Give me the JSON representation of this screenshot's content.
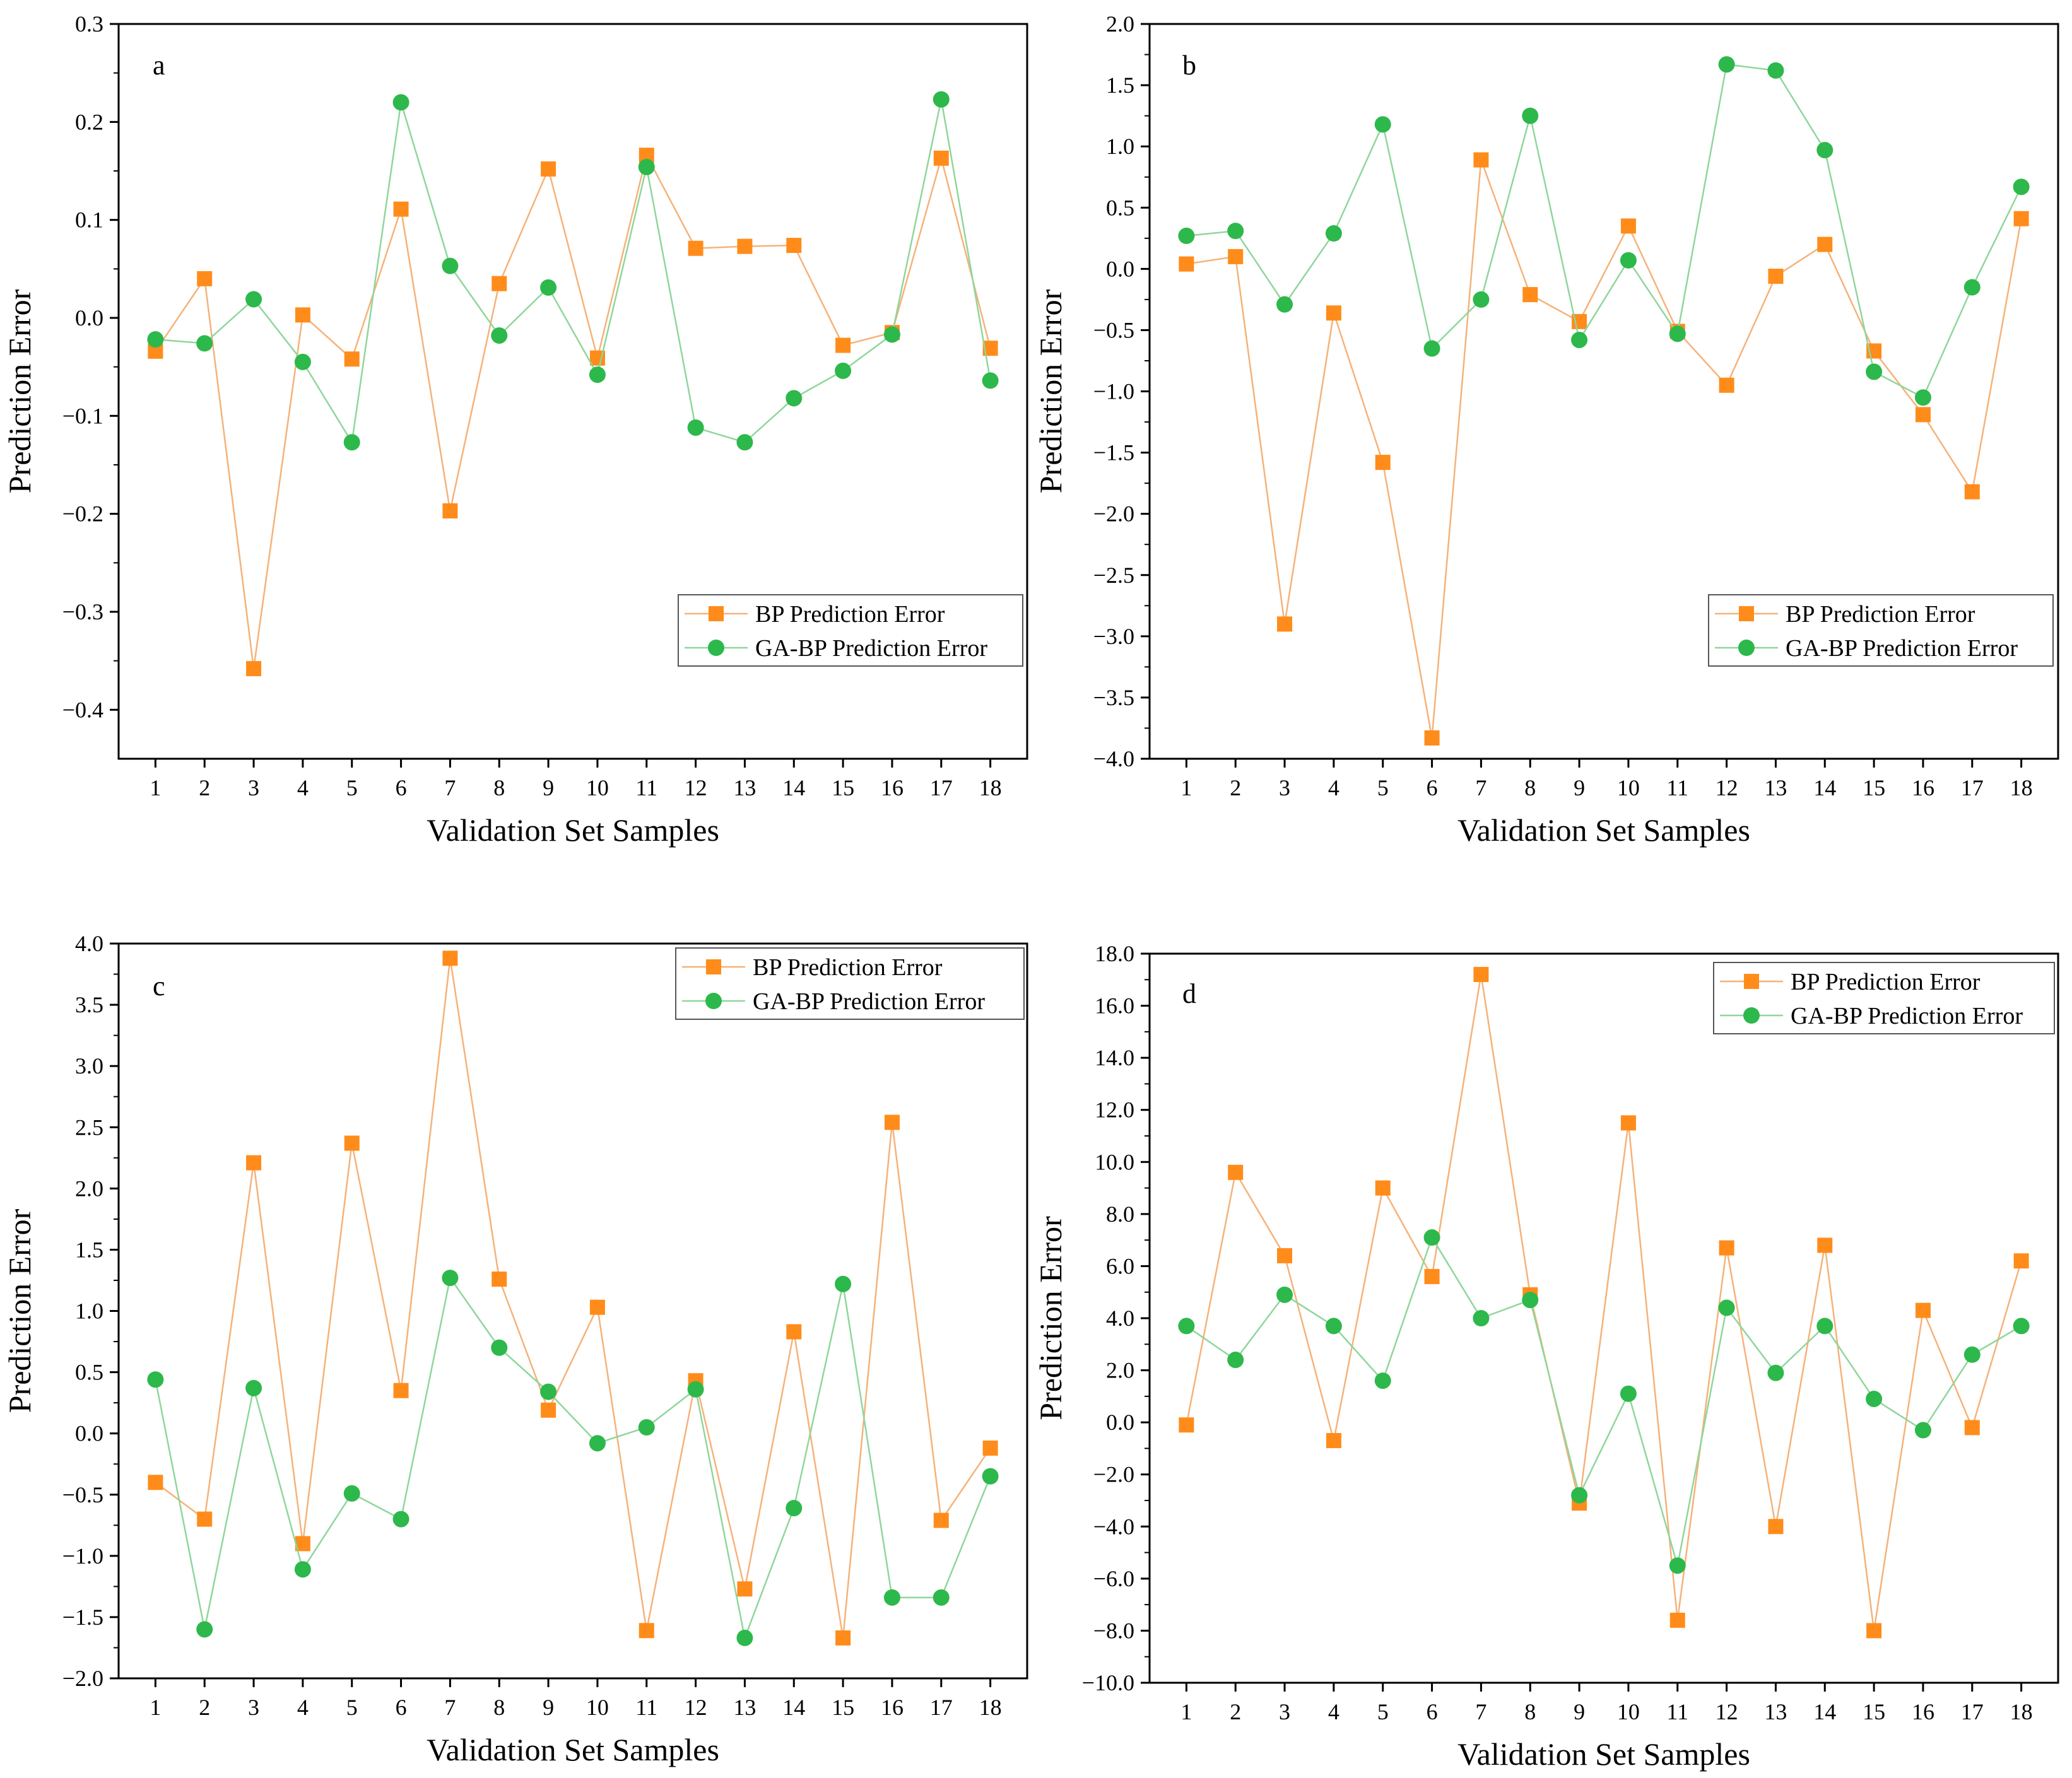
{
  "colors": {
    "bp": "#FF8C1A",
    "bp_line": "#F5B27A",
    "ga": "#2DB84B",
    "ga_line": "#8FD69B",
    "axis": "#000000",
    "background": "#ffffff"
  },
  "legend": {
    "bp_label": "BP Prediction Error",
    "ga_label": "GA-BP Prediction Error"
  },
  "chart_data": [
    {
      "type": "line",
      "panel": "a",
      "xlabel": "Validation Set Samples",
      "ylabel": "Prediction Error",
      "x": [
        1,
        2,
        3,
        4,
        5,
        6,
        7,
        8,
        9,
        10,
        11,
        12,
        13,
        14,
        15,
        16,
        17,
        18
      ],
      "ylim": [
        -0.45,
        0.3
      ],
      "yticks": [
        -0.4,
        -0.3,
        -0.2,
        -0.1,
        0.0,
        0.1,
        0.2,
        0.3
      ],
      "ytick_labels": [
        "−0.4",
        "−0.3",
        "−0.2",
        "−0.1",
        "0.0",
        "0.1",
        "0.2",
        "0.3"
      ],
      "legend_position": "bottom-right",
      "series": [
        {
          "name": "BP Prediction Error",
          "marker": "square",
          "values": [
            -0.034,
            0.04,
            -0.358,
            0.003,
            -0.042,
            0.111,
            -0.197,
            0.035,
            0.152,
            -0.041,
            0.166,
            0.071,
            0.073,
            0.074,
            -0.028,
            -0.015,
            0.163,
            -0.031
          ]
        },
        {
          "name": "GA-BP Prediction Error",
          "marker": "circle",
          "values": [
            -0.022,
            -0.026,
            0.019,
            -0.045,
            -0.127,
            0.22,
            0.053,
            -0.018,
            0.031,
            -0.058,
            0.154,
            -0.112,
            -0.127,
            -0.082,
            -0.054,
            -0.017,
            0.223,
            -0.064
          ]
        }
      ]
    },
    {
      "type": "line",
      "panel": "b",
      "xlabel": "Validation Set Samples",
      "ylabel": "Prediction Error",
      "x": [
        1,
        2,
        3,
        4,
        5,
        6,
        7,
        8,
        9,
        10,
        11,
        12,
        13,
        14,
        15,
        16,
        17,
        18
      ],
      "ylim": [
        -4.0,
        2.0
      ],
      "yticks": [
        -4.0,
        -3.5,
        -3.0,
        -2.5,
        -2.0,
        -1.5,
        -1.0,
        -0.5,
        0.0,
        0.5,
        1.0,
        1.5,
        2.0
      ],
      "ytick_labels": [
        "−4.0",
        "−3.5",
        "−3.0",
        "−2.5",
        "−2.0",
        "−1.5",
        "−1.0",
        "−0.5",
        "0.0",
        "0.5",
        "1.0",
        "1.5",
        "2.0"
      ],
      "legend_position": "bottom-right",
      "series": [
        {
          "name": "BP Prediction Error",
          "marker": "square",
          "values": [
            0.04,
            0.1,
            -2.9,
            -0.36,
            -1.58,
            -3.83,
            0.89,
            -0.21,
            -0.43,
            0.35,
            -0.51,
            -0.95,
            -0.06,
            0.2,
            -0.67,
            -1.19,
            -1.82,
            0.41
          ]
        },
        {
          "name": "GA-BP Prediction Error",
          "marker": "circle",
          "values": [
            0.27,
            0.31,
            -0.29,
            0.29,
            1.18,
            -0.65,
            -0.25,
            1.25,
            -0.58,
            0.07,
            -0.53,
            1.67,
            1.62,
            0.97,
            -0.84,
            -1.05,
            -0.15,
            0.67
          ]
        }
      ]
    },
    {
      "type": "line",
      "panel": "c",
      "xlabel": "Validation Set Samples",
      "ylabel": "Prediction Error",
      "x": [
        1,
        2,
        3,
        4,
        5,
        6,
        7,
        8,
        9,
        10,
        11,
        12,
        13,
        14,
        15,
        16,
        17,
        18
      ],
      "ylim": [
        -2.0,
        4.0
      ],
      "yticks": [
        -2.0,
        -1.5,
        -1.0,
        -0.5,
        0.0,
        0.5,
        1.0,
        1.5,
        2.0,
        2.5,
        3.0,
        3.5,
        4.0
      ],
      "ytick_labels": [
        "−2.0",
        "−1.5",
        "−1.0",
        "−0.5",
        "0.0",
        "0.5",
        "1.0",
        "1.5",
        "2.0",
        "2.5",
        "3.0",
        "3.5",
        "4.0"
      ],
      "legend_position": "top-right",
      "series": [
        {
          "name": "BP Prediction Error",
          "marker": "square",
          "values": [
            -0.4,
            -0.7,
            2.21,
            -0.9,
            2.37,
            0.35,
            3.88,
            1.26,
            0.19,
            1.03,
            -1.61,
            0.43,
            -1.27,
            0.83,
            -1.67,
            2.54,
            -0.71,
            -0.12
          ]
        },
        {
          "name": "GA-BP Prediction Error",
          "marker": "circle",
          "values": [
            0.44,
            -1.6,
            0.37,
            -1.11,
            -0.49,
            -0.7,
            1.27,
            0.7,
            0.34,
            -0.08,
            0.05,
            0.36,
            -1.67,
            -0.61,
            1.22,
            -1.34,
            -1.34,
            -0.35
          ]
        }
      ]
    },
    {
      "type": "line",
      "panel": "d",
      "xlabel": "Validation Set Samples",
      "ylabel": "Prediction Error",
      "x": [
        1,
        2,
        3,
        4,
        5,
        6,
        7,
        8,
        9,
        10,
        11,
        12,
        13,
        14,
        15,
        16,
        17,
        18
      ],
      "ylim": [
        -10.0,
        18.0
      ],
      "yticks": [
        -10,
        -8,
        -6,
        -4,
        -2,
        0,
        2,
        4,
        6,
        8,
        10,
        12,
        14,
        16,
        18
      ],
      "ytick_labels": [
        "−10.0",
        "−8.0",
        "−6.0",
        "−4.0",
        "−2.0",
        "0.0",
        "2.0",
        "4.0",
        "6.0",
        "8.0",
        "10.0",
        "12.0",
        "14.0",
        "16.0",
        "18.0"
      ],
      "legend_position": "top-right",
      "series": [
        {
          "name": "BP Prediction Error",
          "marker": "square",
          "values": [
            -0.1,
            9.6,
            6.4,
            -0.7,
            9.0,
            5.6,
            17.2,
            4.9,
            -3.1,
            11.5,
            -7.6,
            6.7,
            -4.0,
            6.8,
            -8.0,
            4.3,
            -0.2,
            6.2
          ]
        },
        {
          "name": "GA-BP Prediction Error",
          "marker": "circle",
          "values": [
            3.7,
            2.4,
            4.9,
            3.7,
            1.6,
            7.1,
            4.0,
            4.7,
            -2.8,
            1.1,
            -5.5,
            4.4,
            1.9,
            3.7,
            0.9,
            -0.3,
            2.6,
            3.7
          ]
        }
      ]
    }
  ]
}
